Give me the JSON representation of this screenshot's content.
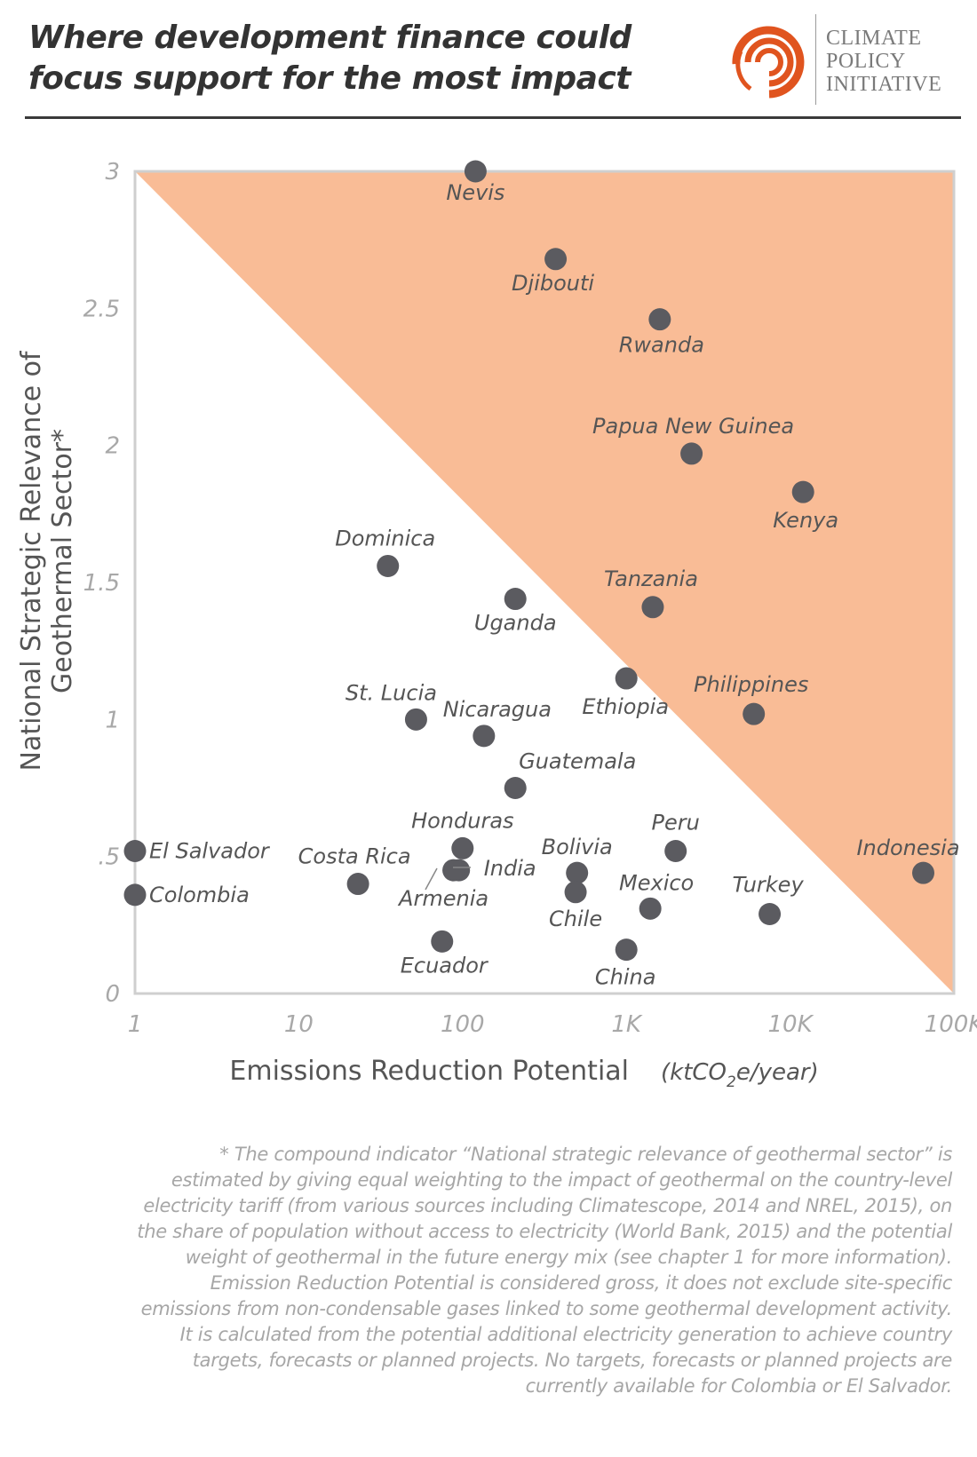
{
  "header": {
    "title_line1": "Where development finance could",
    "title_line2": "focus support for the most impact",
    "logo_line1": "CLIMATE",
    "logo_line2": "POLICY",
    "logo_line3": "INITIATIVE",
    "logo_color": "#e0541f"
  },
  "chart_data": {
    "type": "scatter",
    "xlabel": "Emissions Reduction Potential",
    "xunit_prefix": "(ktCO",
    "xunit_sub": "2",
    "xunit_suffix": "e/year)",
    "ylabel_line1": "National Strategic Relevance of",
    "ylabel_line2": "Geothermal Sector*",
    "xscale": "log",
    "xlim": [
      1,
      100000
    ],
    "ylim": [
      0,
      3
    ],
    "xticks": [
      {
        "value": 1,
        "label": "1"
      },
      {
        "value": 10,
        "label": "10"
      },
      {
        "value": 100,
        "label": "100"
      },
      {
        "value": 1000,
        "label": "1K"
      },
      {
        "value": 10000,
        "label": "10K"
      },
      {
        "value": 100000,
        "label": "100K"
      }
    ],
    "yticks": [
      {
        "value": 0,
        "label": "0"
      },
      {
        "value": 0.5,
        "label": ".5"
      },
      {
        "value": 1,
        "label": "1"
      },
      {
        "value": 1.5,
        "label": "1.5"
      },
      {
        "value": 2,
        "label": "2"
      },
      {
        "value": 2.5,
        "label": "2.5"
      },
      {
        "value": 3,
        "label": "3"
      }
    ],
    "grid": false,
    "highlight_region": "triangle above diagonal from (1, 3) to (100000, 0)",
    "colors": {
      "highlight": "#f9bc96",
      "point": "#5b5b60",
      "frame": "#cfcfcf"
    },
    "points": [
      {
        "label": "Nevis",
        "x": 120,
        "y": 3.0
      },
      {
        "label": "Djibouti",
        "x": 370,
        "y": 2.68
      },
      {
        "label": "Rwanda",
        "x": 1600,
        "y": 2.46
      },
      {
        "label": "Papua New Guinea",
        "x": 2500,
        "y": 1.97
      },
      {
        "label": "Kenya",
        "x": 12000,
        "y": 1.83
      },
      {
        "label": "Dominica",
        "x": 35,
        "y": 1.56
      },
      {
        "label": "Uganda",
        "x": 210,
        "y": 1.44
      },
      {
        "label": "Tanzania",
        "x": 1450,
        "y": 1.41
      },
      {
        "label": "Ethiopia",
        "x": 1000,
        "y": 1.15
      },
      {
        "label": "Philippines",
        "x": 6000,
        "y": 1.02
      },
      {
        "label": "St. Lucia",
        "x": 52,
        "y": 1.0
      },
      {
        "label": "Nicaragua",
        "x": 135,
        "y": 0.94
      },
      {
        "label": "Guatemala",
        "x": 210,
        "y": 0.75
      },
      {
        "label": "El Salvador",
        "x": 1,
        "y": 0.52
      },
      {
        "label": "Colombia",
        "x": 1,
        "y": 0.36
      },
      {
        "label": "Costa Rica",
        "x": 23,
        "y": 0.4
      },
      {
        "label": "Honduras",
        "x": 100,
        "y": 0.53
      },
      {
        "label": "India",
        "x": 95,
        "y": 0.45
      },
      {
        "label": "Armenia",
        "x": 88,
        "y": 0.45
      },
      {
        "label": "Bolivia",
        "x": 500,
        "y": 0.44
      },
      {
        "label": "Chile",
        "x": 490,
        "y": 0.37
      },
      {
        "label": "Peru",
        "x": 2000,
        "y": 0.52
      },
      {
        "label": "Mexico",
        "x": 1400,
        "y": 0.31
      },
      {
        "label": "Turkey",
        "x": 7500,
        "y": 0.29
      },
      {
        "label": "Indonesia",
        "x": 65000,
        "y": 0.44
      },
      {
        "label": "Ecuador",
        "x": 75,
        "y": 0.19
      },
      {
        "label": "China",
        "x": 1000,
        "y": 0.16
      }
    ]
  },
  "footnote": "* The compound indicator “National strategic relevance of geothermal sector” is estimated by giving equal weighting to the impact of geothermal on the country-level electricity tariff (from various sources including Climatescope, 2014 and NREL, 2015), on the share of population without access to electricity (World Bank, 2015) and the potential weight of geothermal in the future energy mix (see chapter 1 for more information). Emission Reduction Potential is considered gross, it does not exclude site-specific emissions from non-condensable gases linked to some geothermal development activity. It is calculated from the potential additional electricity generation to achieve country targets, forecasts or planned projects. No targets, forecasts or planned projects are currently available for Colombia or El Salvador."
}
